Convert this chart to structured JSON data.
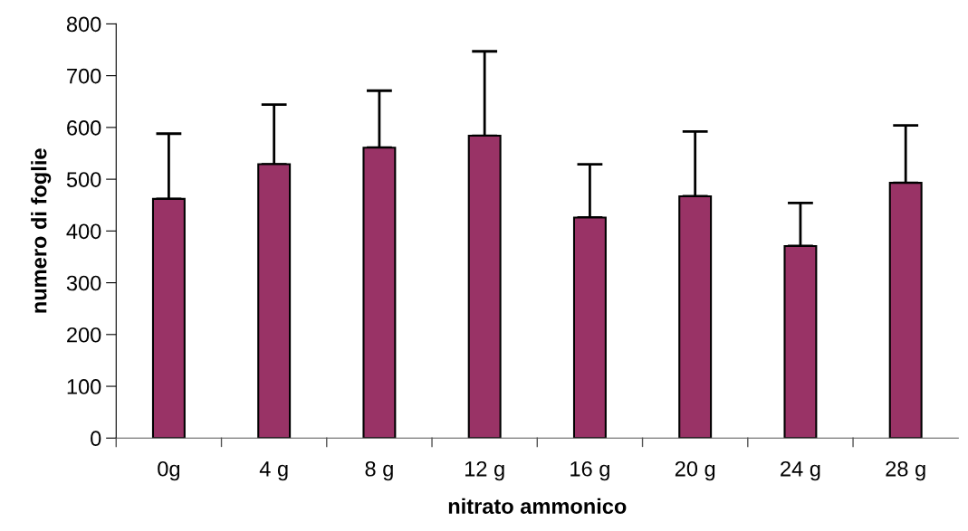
{
  "chart_data": {
    "type": "bar",
    "xlabel": "nitrato ammonico",
    "ylabel": "numero di foglie",
    "categories": [
      "0g",
      "4 g",
      "8 g",
      "12 g",
      "16 g",
      "20 g",
      "24 g",
      "28 g"
    ],
    "values": [
      462,
      529,
      561,
      584,
      426,
      467,
      371,
      493
    ],
    "errors": [
      [
        462,
        588
      ],
      [
        529,
        644
      ],
      [
        561,
        671
      ],
      [
        584,
        747
      ],
      [
        426,
        529
      ],
      [
        467,
        592
      ],
      [
        371,
        454
      ],
      [
        493,
        604
      ]
    ],
    "color": "#993366",
    "ylim": [
      0,
      800
    ],
    "yticks": [
      0,
      100,
      200,
      300,
      400,
      500,
      600,
      700,
      800
    ],
    "grid": false
  }
}
